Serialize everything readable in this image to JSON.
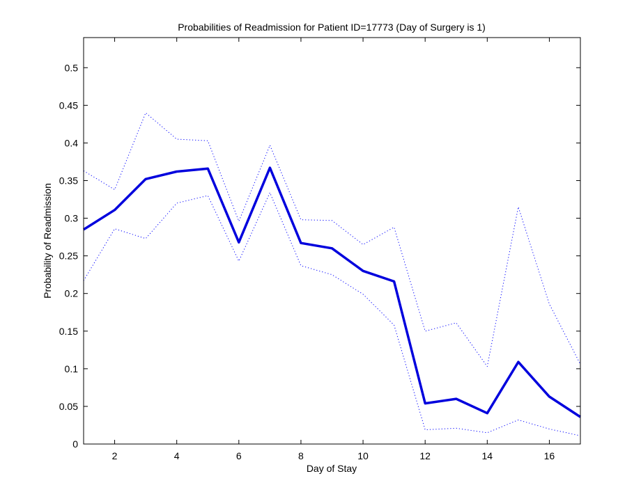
{
  "chart_data": {
    "type": "line",
    "title": "Probabilities of Readmission for Patient ID=17773 (Day of Surgery is 1)",
    "xlabel": "Day of Stay",
    "ylabel": "Probability of Readmission",
    "xlim": [
      1,
      17
    ],
    "ylim": [
      0,
      0.54
    ],
    "xticks": [
      2,
      4,
      6,
      8,
      10,
      12,
      14,
      16
    ],
    "yticks": [
      0,
      0.05,
      0.1,
      0.15,
      0.2,
      0.25,
      0.3,
      0.35,
      0.4,
      0.45,
      0.5
    ],
    "ytick_labels": [
      "0",
      "0.05",
      "0.1",
      "0.15",
      "0.2",
      "0.25",
      "0.3",
      "0.35",
      "0.4",
      "0.45",
      "0.5"
    ],
    "grid": false,
    "x": [
      1,
      2,
      3,
      4,
      5,
      6,
      7,
      8,
      9,
      10,
      11,
      12,
      13,
      14,
      15,
      16,
      17
    ],
    "series": [
      {
        "style": "solid",
        "color": "#0000dd",
        "values": [
          0.285,
          0.311,
          0.352,
          0.362,
          0.366,
          0.268,
          0.367,
          0.267,
          0.26,
          0.23,
          0.216,
          0.054,
          0.06,
          0.041,
          0.109,
          0.063,
          0.036
        ]
      },
      {
        "style": "dotted",
        "color": "#0000ff",
        "values": [
          0.363,
          0.338,
          0.44,
          0.405,
          0.403,
          0.296,
          0.397,
          0.298,
          0.297,
          0.265,
          0.288,
          0.15,
          0.161,
          0.103,
          0.315,
          0.186,
          0.106
        ]
      },
      {
        "style": "dotted",
        "color": "#0000ff",
        "values": [
          0.217,
          0.286,
          0.273,
          0.32,
          0.33,
          0.243,
          0.334,
          0.237,
          0.225,
          0.199,
          0.158,
          0.019,
          0.021,
          0.015,
          0.032,
          0.02,
          0.011
        ]
      }
    ]
  }
}
